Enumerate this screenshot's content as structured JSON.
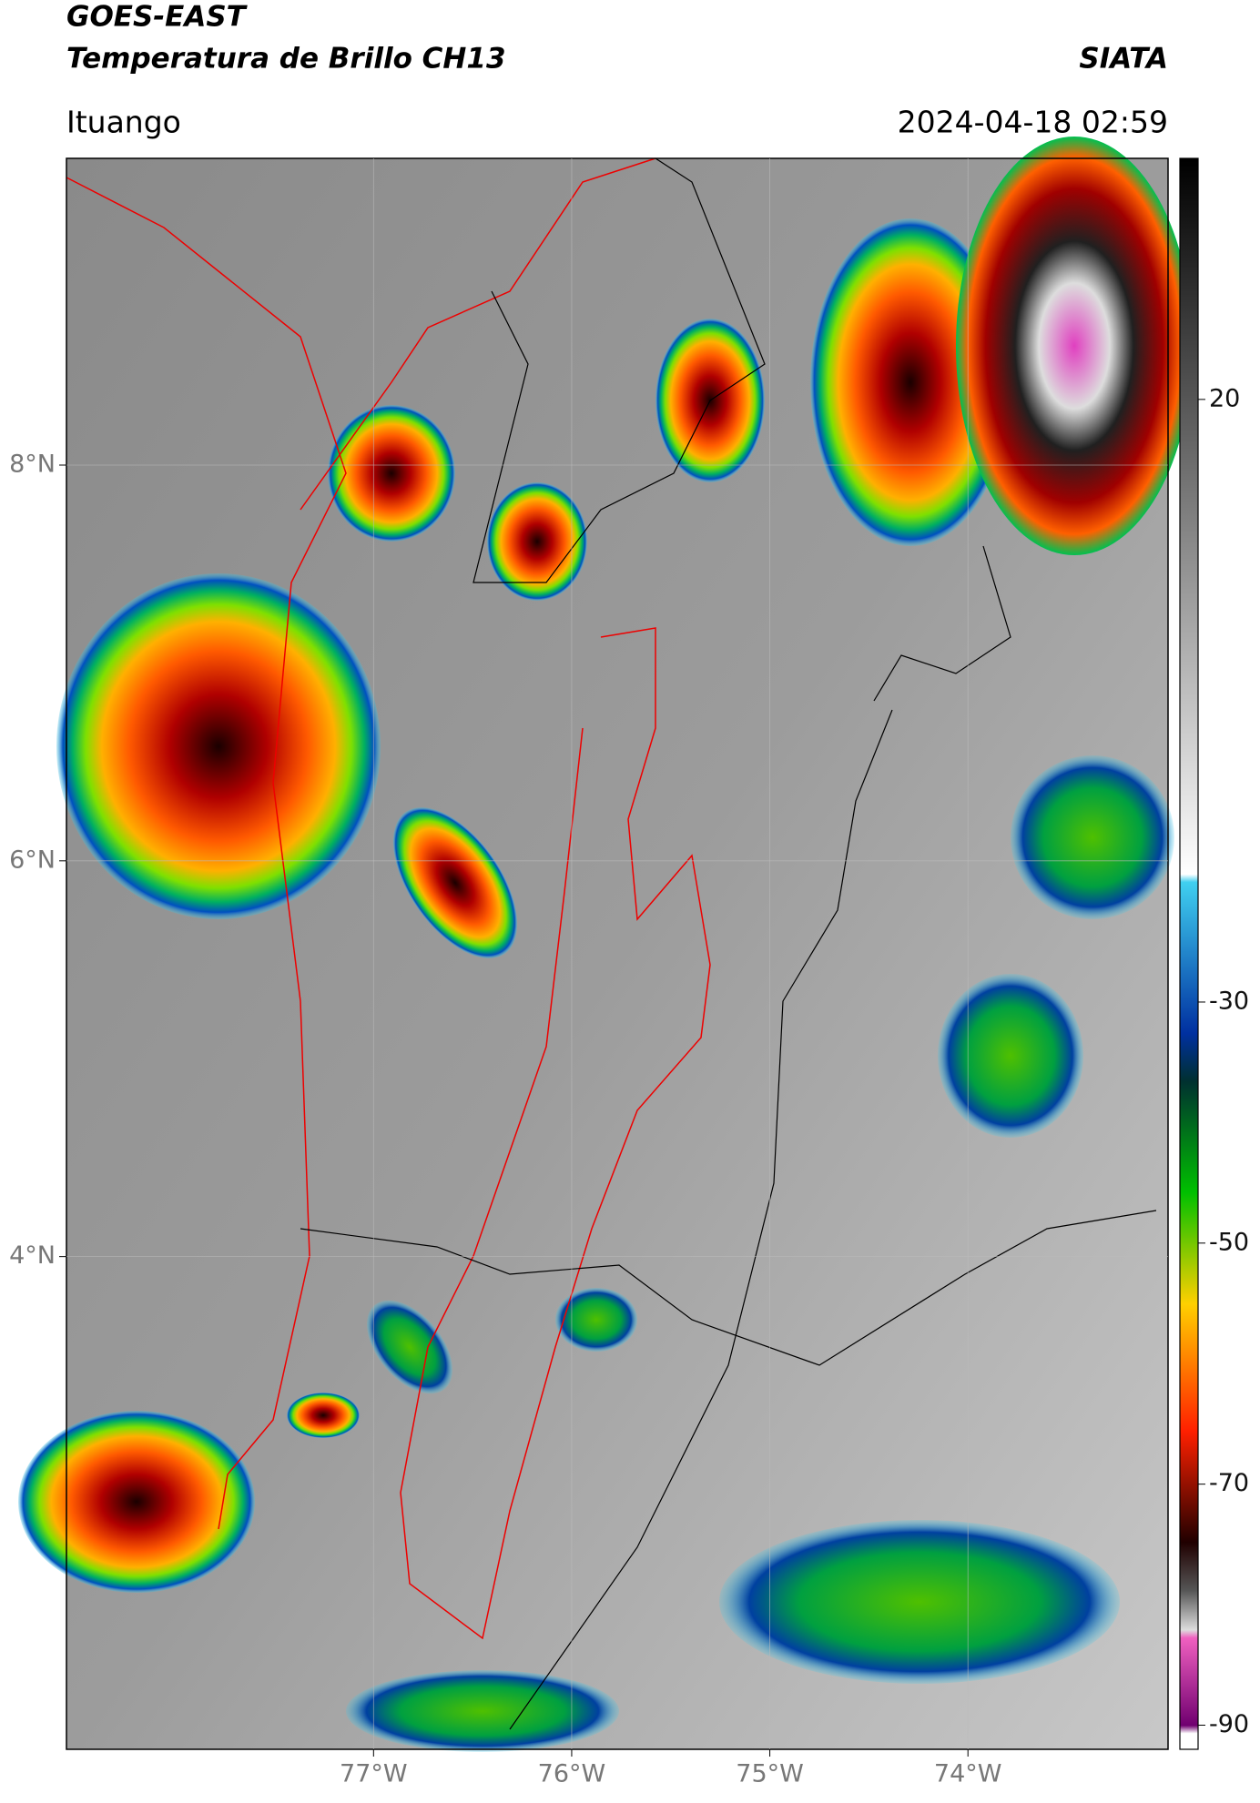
{
  "header": {
    "title": "GOES-EAST",
    "subtitle": "Temperatura de Brillo CH13",
    "source": "SIATA",
    "location": "Ituango",
    "datetime": "2024-04-18 02:59"
  },
  "map": {
    "latlim": [
      1.51,
      9.55
    ],
    "lonlim": [
      -78.55,
      -72.99
    ],
    "lat_ticks": [
      {
        "value": 8,
        "label": "8°N"
      },
      {
        "value": 6,
        "label": "6°N"
      },
      {
        "value": 4,
        "label": "4°N"
      }
    ],
    "lon_ticks": [
      {
        "value": -77,
        "label": "77°W"
      },
      {
        "value": -76,
        "label": "76°W"
      },
      {
        "value": -75,
        "label": "75°W"
      },
      {
        "value": -74,
        "label": "74°W"
      }
    ]
  },
  "colorbar": {
    "lim": [
      -92,
      40
    ],
    "ticks": [
      20,
      -30,
      -50,
      -70,
      -90
    ]
  }
}
